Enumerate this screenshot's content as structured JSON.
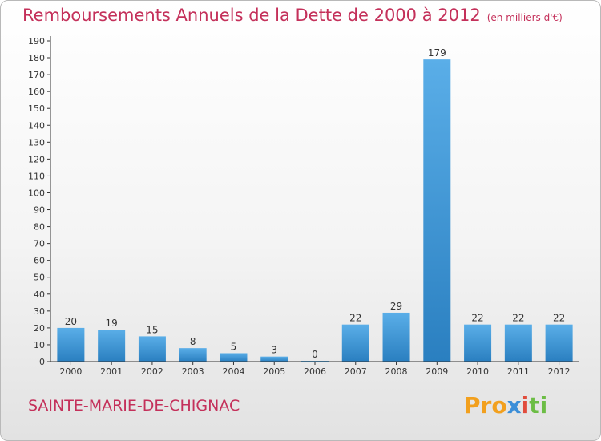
{
  "page": {
    "title": "Remboursements Annuels de la Dette de 2000 à 2012",
    "unit_note": "(en milliers d'€)",
    "city": "SAINTE-MARIE-DE-CHIGNAC",
    "logo": {
      "part1": "Pro",
      "part2": "x",
      "part3": "i",
      "part4": "ti"
    }
  },
  "colors": {
    "title": "#c4305a",
    "bar_light": "#5aaee8",
    "bar_dark": "#2a7fc0",
    "axis": "#333333"
  },
  "chart_data": {
    "type": "bar",
    "categories": [
      "2000",
      "2001",
      "2002",
      "2003",
      "2004",
      "2005",
      "2006",
      "2007",
      "2008",
      "2009",
      "2010",
      "2011",
      "2012"
    ],
    "values": [
      20,
      19,
      15,
      8,
      5,
      3,
      0,
      22,
      29,
      179,
      22,
      22,
      22
    ],
    "ylim": [
      0,
      190
    ],
    "yticks": [
      0,
      10,
      20,
      30,
      40,
      50,
      60,
      70,
      80,
      90,
      100,
      110,
      120,
      130,
      140,
      150,
      160,
      170,
      180,
      190
    ],
    "grid": false,
    "data_labels": true
  }
}
